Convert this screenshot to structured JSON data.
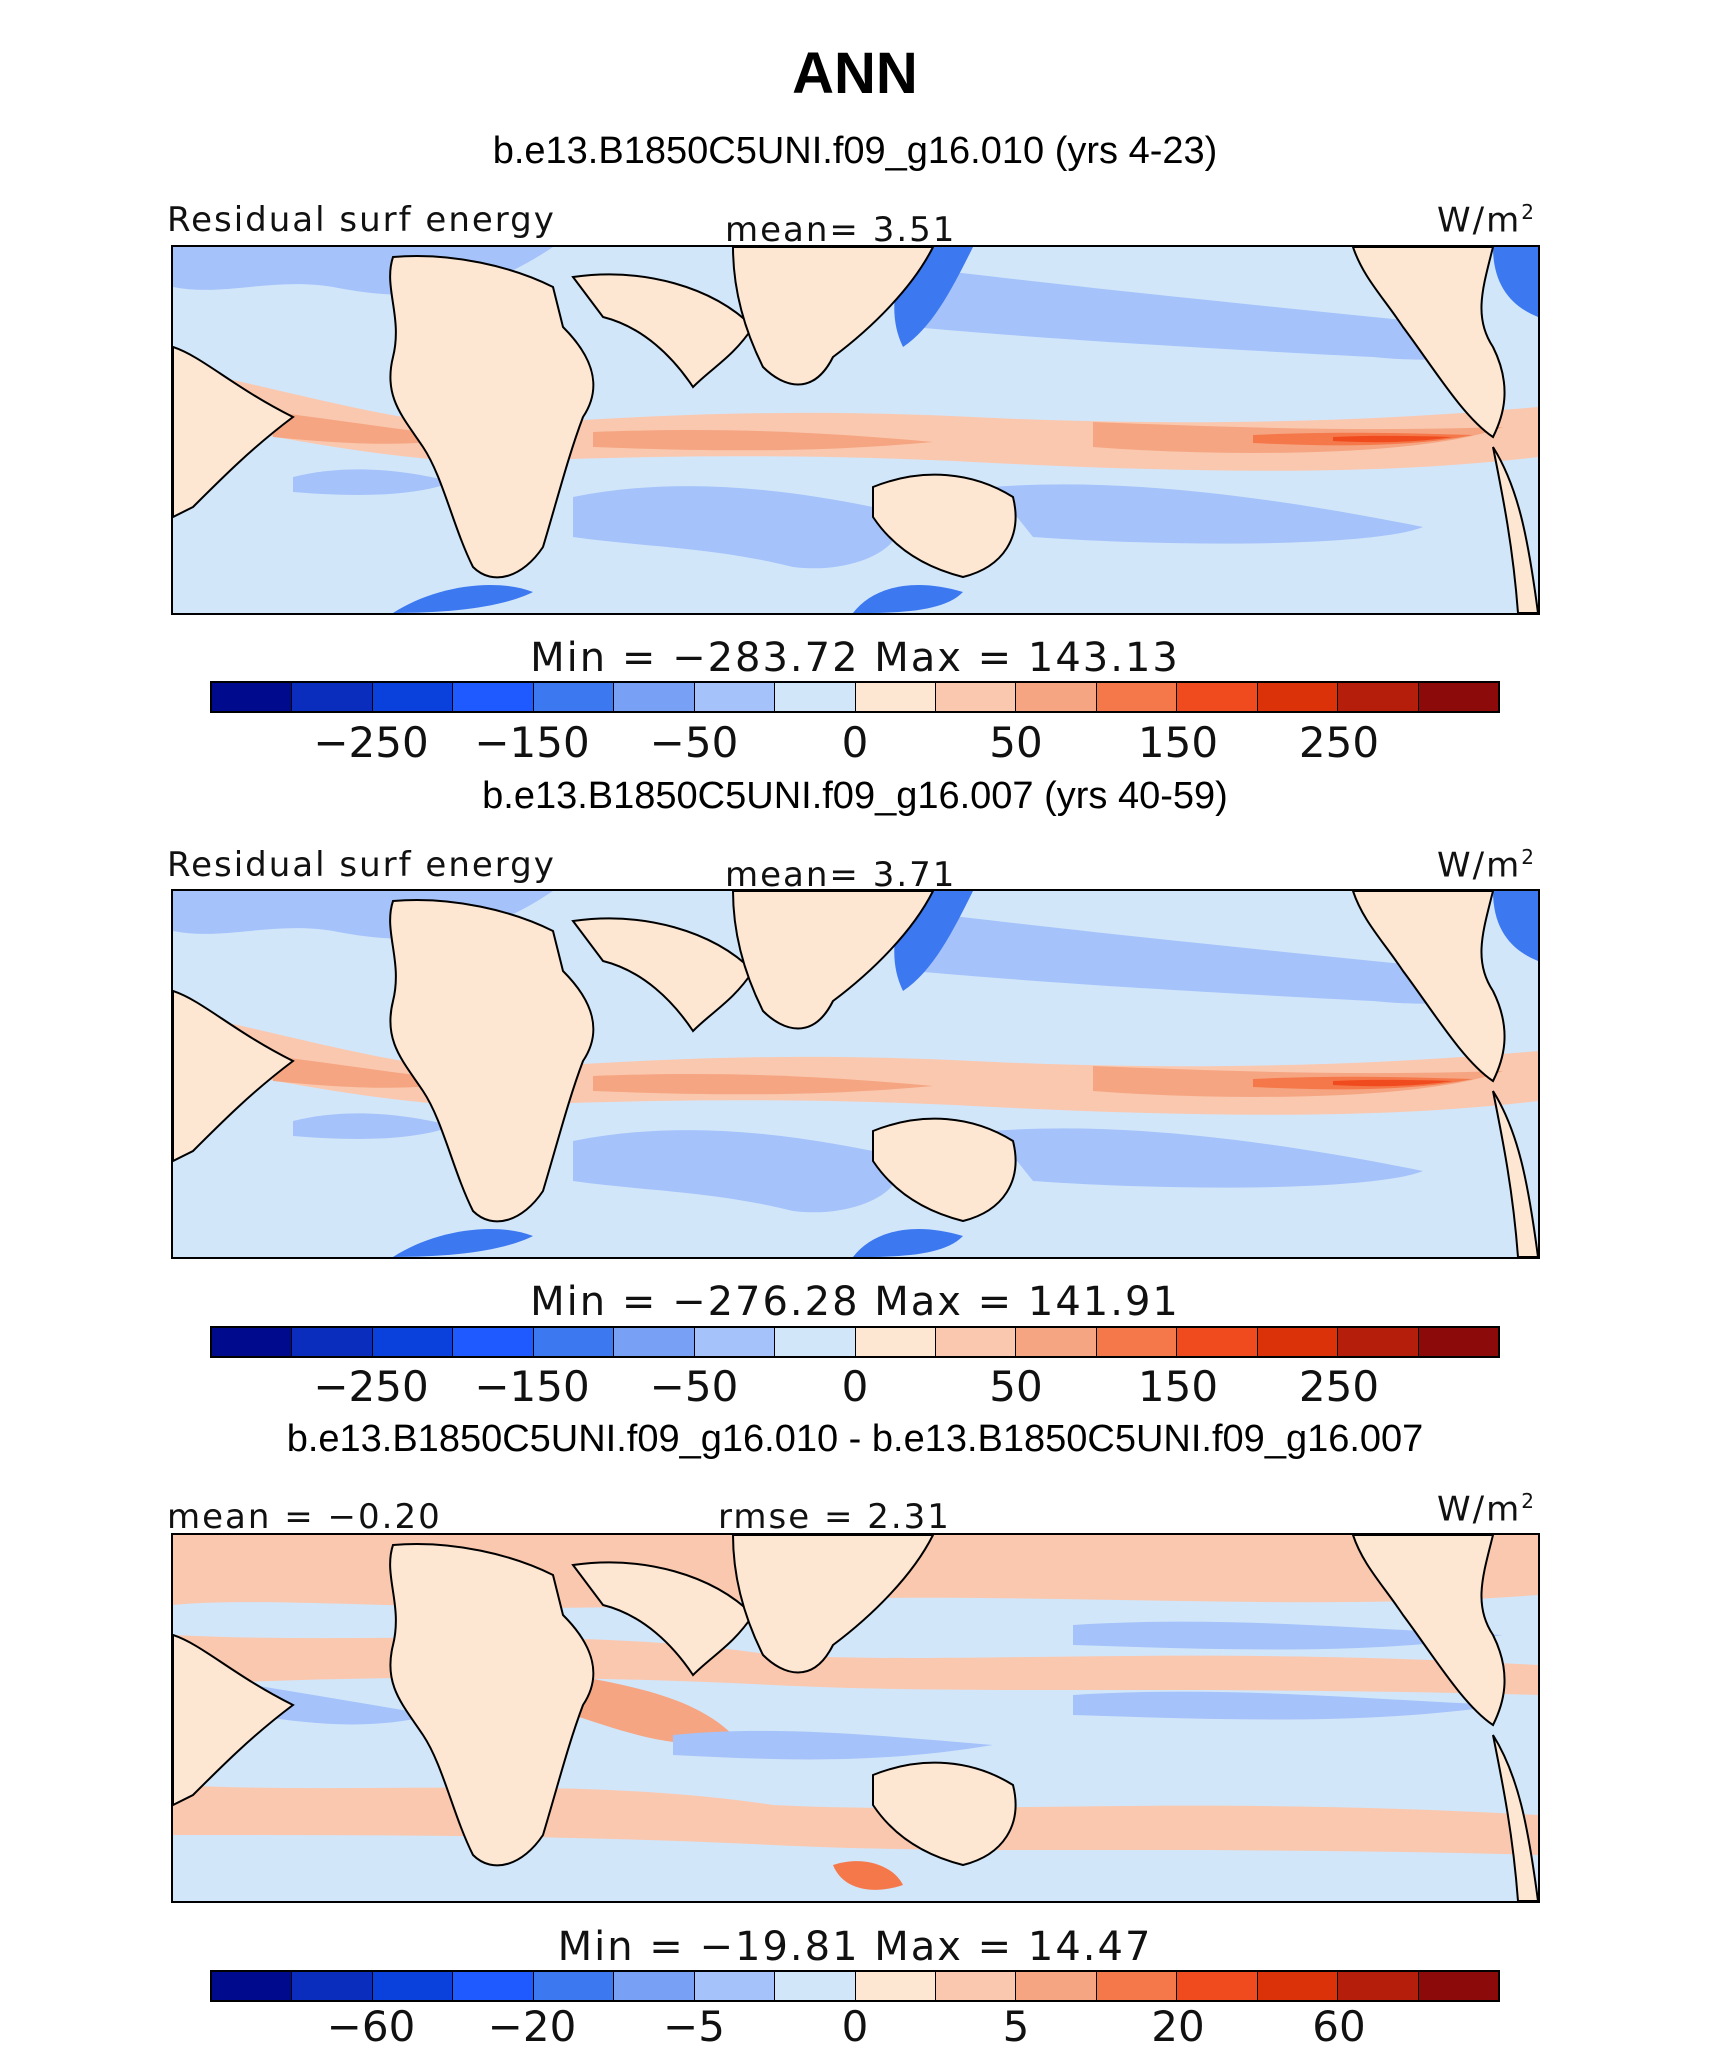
{
  "figure": {
    "title": "ANN"
  },
  "panels": [
    {
      "case_title": "b.e13.B1850C5UNI.f09_g16.010 (yrs 4-23)",
      "left_label": "Residual surf energy",
      "center_label": "mean=   3.51",
      "units_label": "W/m",
      "units_sup": "2",
      "minmax": "Min = −283.72 Max = 143.13",
      "colorbar_ticks": [
        "−250",
        "−150",
        "−50",
        "0",
        "50",
        "150",
        "250"
      ]
    },
    {
      "case_title": "b.e13.B1850C5UNI.f09_g16.007 (yrs 40-59)",
      "left_label": "Residual surf energy",
      "center_label": "mean=   3.71",
      "units_label": "W/m",
      "units_sup": "2",
      "minmax": "Min = −276.28 Max = 141.91",
      "colorbar_ticks": [
        "−250",
        "−150",
        "−50",
        "0",
        "50",
        "150",
        "250"
      ]
    },
    {
      "case_title": "b.e13.B1850C5UNI.f09_g16.010 - b.e13.B1850C5UNI.f09_g16.007",
      "left_label": "mean =  −0.20",
      "center_label": "rmse =   2.31",
      "units_label": "W/m",
      "units_sup": "2",
      "minmax": "Min = −19.81 Max =  14.47",
      "colorbar_ticks": [
        "−60",
        "−20",
        "−5",
        "0",
        "5",
        "20",
        "60"
      ]
    }
  ],
  "colorbar_colors": [
    "#000a8c",
    "#0a2dbe",
    "#0a41dc",
    "#1e5aff",
    "#3c78f0",
    "#78a0f5",
    "#a5c3fa",
    "#d2e6fa",
    "#fde6d2",
    "#fac8af",
    "#f5a582",
    "#f5784b",
    "#f04b1e",
    "#dc320a",
    "#b41e0a",
    "#8c0a0a"
  ],
  "map_colors": {
    "land": "#fde6d2",
    "ocean_light": "#d2e6fa",
    "ocean_mid": "#a5c3fa",
    "ocean_deep": "#3c78f0",
    "warm_light": "#fac8af",
    "warm_mid": "#f5a582",
    "warm_strong": "#f5784b",
    "warm_max": "#f04b1e"
  }
}
